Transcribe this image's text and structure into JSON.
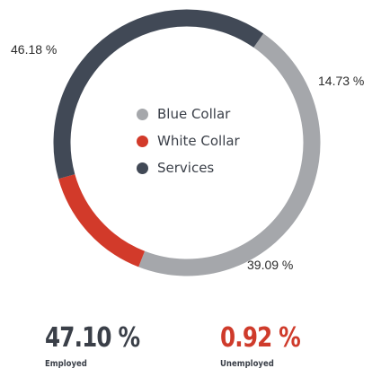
{
  "colors": {
    "blue_collar": "#a5a7ab",
    "white_collar": "#d23a2a",
    "services": "#414956",
    "label_text": "#2a2a2a",
    "employed_value": "#3a3f48",
    "unemployed_value": "#cf3b2b"
  },
  "chart_data": {
    "type": "pie",
    "style": "donut",
    "categories": [
      "Blue Collar",
      "White Collar",
      "Services"
    ],
    "values": [
      46.18,
      14.73,
      39.09
    ],
    "value_labels": [
      "46.18 %",
      "14.73 %",
      "39.09 %"
    ],
    "legend_placement": "center",
    "series": [
      {
        "name": "Blue Collar",
        "value": 46.18,
        "color": "#a5a7ab"
      },
      {
        "name": "White Collar",
        "value": 14.73,
        "color": "#d23a2a"
      },
      {
        "name": "Services",
        "value": 39.09,
        "color": "#414956"
      }
    ]
  },
  "legend": {
    "items": [
      {
        "label": "Blue Collar",
        "color": "#a5a7ab"
      },
      {
        "label": "White Collar",
        "color": "#d23a2a"
      },
      {
        "label": "Services",
        "color": "#414956"
      }
    ]
  },
  "stats": {
    "employed": {
      "value": "47.10 %",
      "label": "Employed"
    },
    "unemployed": {
      "value": "0.92 %",
      "label": "Unemployed"
    }
  }
}
